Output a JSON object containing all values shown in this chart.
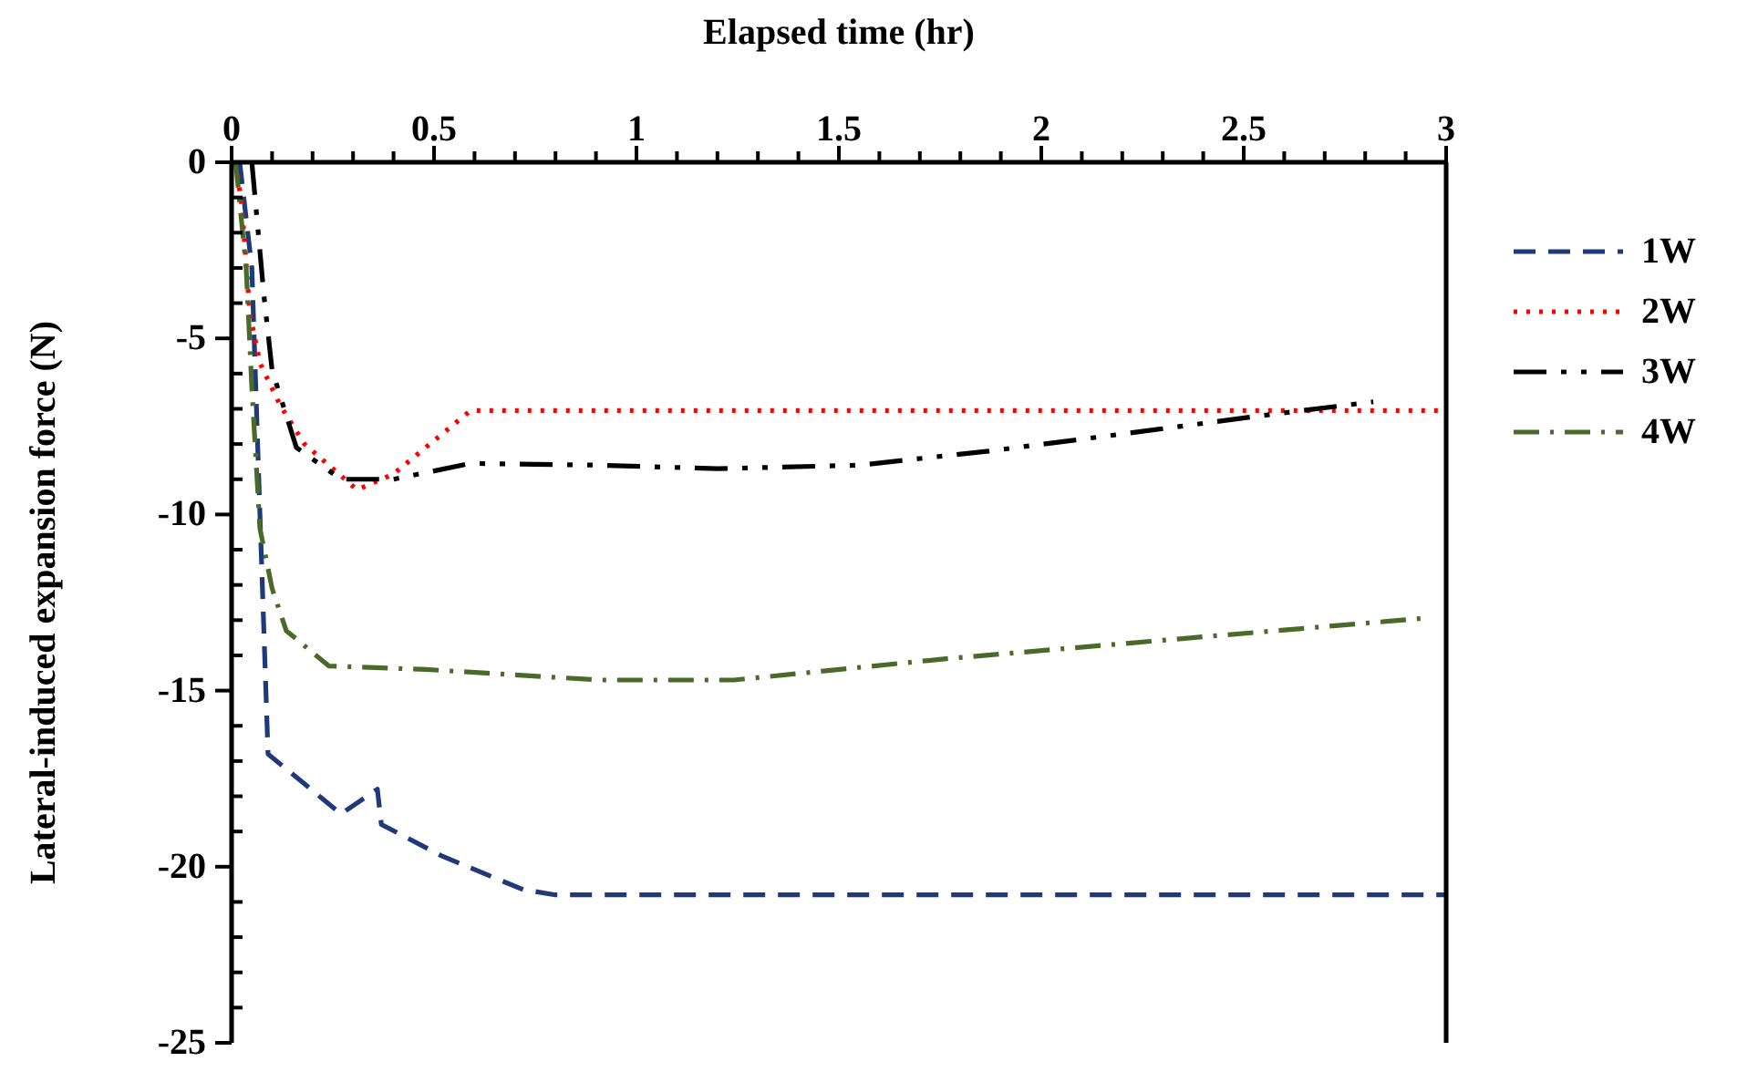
{
  "chart_data": {
    "type": "line",
    "xlabel": "Elapsed time (hr)",
    "ylabel": "Lateral-induced expansion force (N)",
    "xlim": [
      0,
      3
    ],
    "ylim": [
      -25,
      0
    ],
    "xticks": [
      0,
      {
        "value": 0.1,
        "label": null
      },
      {
        "value": 0.2,
        "label": null
      },
      {
        "value": 0.3,
        "label": null
      },
      {
        "value": 0.4,
        "label": null
      },
      0.5,
      {
        "value": 0.6,
        "label": null
      },
      {
        "value": 0.7,
        "label": null
      },
      {
        "value": 0.8,
        "label": null
      },
      {
        "value": 0.9,
        "label": null
      },
      1,
      {
        "value": 1.1,
        "label": null
      },
      {
        "value": 1.2,
        "label": null
      },
      {
        "value": 1.3,
        "label": null
      },
      {
        "value": 1.4,
        "label": null
      },
      1.5,
      {
        "value": 1.6,
        "label": null
      },
      {
        "value": 1.7,
        "label": null
      },
      {
        "value": 1.8,
        "label": null
      },
      {
        "value": 1.9,
        "label": null
      },
      2,
      {
        "value": 2.1,
        "label": null
      },
      {
        "value": 2.2,
        "label": null
      },
      {
        "value": 2.3,
        "label": null
      },
      {
        "value": 2.4,
        "label": null
      },
      2.5,
      {
        "value": 2.6,
        "label": null
      },
      {
        "value": 2.7,
        "label": null
      },
      {
        "value": 2.8,
        "label": null
      },
      {
        "value": 2.9,
        "label": null
      },
      3
    ],
    "yticks": [
      0,
      {
        "value": -1,
        "label": null
      },
      {
        "value": -2,
        "label": null
      },
      {
        "value": -3,
        "label": null
      },
      {
        "value": -4,
        "label": null
      },
      -5,
      {
        "value": -6,
        "label": null
      },
      {
        "value": -7,
        "label": null
      },
      {
        "value": -8,
        "label": null
      },
      {
        "value": -9,
        "label": null
      },
      -10,
      {
        "value": -11,
        "label": null
      },
      {
        "value": -12,
        "label": null
      },
      {
        "value": -13,
        "label": null
      },
      {
        "value": -14,
        "label": null
      },
      -15,
      {
        "value": -16,
        "label": null
      },
      {
        "value": -17,
        "label": null
      },
      {
        "value": -18,
        "label": null
      },
      {
        "value": -19,
        "label": null
      },
      -20,
      {
        "value": -21,
        "label": null
      },
      {
        "value": -22,
        "label": null
      },
      {
        "value": -23,
        "label": null
      },
      {
        "value": -24,
        "label": null
      },
      -25
    ],
    "grid": false,
    "legend": "right",
    "marker": "none",
    "series": [
      {
        "name": "1W",
        "color": "#1f3a7a",
        "line_style": "dashed",
        "x": [
          0.02,
          0.05,
          0.07,
          0.09,
          0.27,
          0.36,
          0.37,
          0.52,
          0.72,
          0.8,
          3
        ],
        "values": [
          0,
          -3,
          -10,
          -16.8,
          -18.5,
          -17.8,
          -18.8,
          -19.7,
          -20.65,
          -20.8,
          -20.8
        ]
      },
      {
        "name": "2W",
        "color": "#ff0000",
        "line_style": "dotted",
        "x": [
          0.01,
          0.025,
          0.045,
          0.07,
          0.12,
          0.18,
          0.31,
          0.4,
          0.59,
          3
        ],
        "values": [
          0,
          -1.2,
          -4.3,
          -5.7,
          -6.9,
          -8.0,
          -9.3,
          -8.85,
          -7.05,
          -7.05
        ]
      },
      {
        "name": "3W",
        "color": "#000000",
        "line_style": "dashdotdot",
        "x": [
          0.05,
          0.08,
          0.1,
          0.16,
          0.27,
          0.4,
          0.59,
          0.91,
          1.2,
          1.55,
          1.87,
          2.21,
          2.54,
          2.82
        ],
        "values": [
          0,
          -3.8,
          -5.9,
          -8.1,
          -9.0,
          -9.0,
          -8.55,
          -8.6,
          -8.7,
          -8.6,
          -8.2,
          -7.7,
          -7.2,
          -6.8
        ]
      },
      {
        "name": "4W",
        "color": "#4a6a2a",
        "line_style": "dashdot",
        "x": [
          0.01,
          0.036,
          0.05,
          0.07,
          0.1,
          0.135,
          0.24,
          0.48,
          0.91,
          1.24,
          1.76,
          2.27,
          2.94
        ],
        "values": [
          0,
          -3,
          -6.4,
          -10.4,
          -12.1,
          -13.3,
          -14.3,
          -14.4,
          -14.7,
          -14.7,
          -14.1,
          -13.6,
          -12.95
        ]
      }
    ]
  }
}
